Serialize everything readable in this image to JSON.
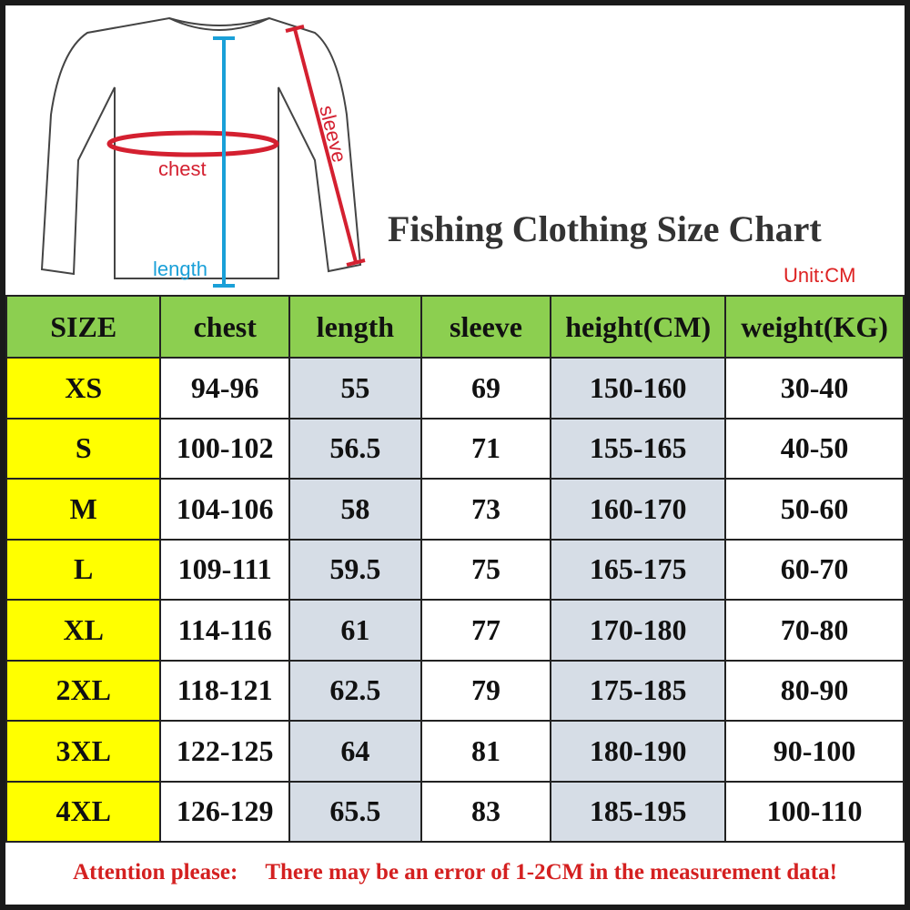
{
  "diagram": {
    "chest_label": "chest",
    "length_label": "length",
    "sleeve_label": "sleeve",
    "chest_color": "#d42030",
    "length_color": "#1aa0d8"
  },
  "title": "Fishing Clothing Size Chart",
  "unit": "Unit:CM",
  "table": {
    "headers": [
      "SIZE",
      "chest",
      "length",
      "sleeve",
      "height(CM)",
      "weight(KG)"
    ],
    "rows": [
      [
        "XS",
        "94-96",
        "55",
        "69",
        "150-160",
        "30-40"
      ],
      [
        "S",
        "100-102",
        "56.5",
        "71",
        "155-165",
        "40-50"
      ],
      [
        "M",
        "104-106",
        "58",
        "73",
        "160-170",
        "50-60"
      ],
      [
        "L",
        "109-111",
        "59.5",
        "75",
        "165-175",
        "60-70"
      ],
      [
        "XL",
        "114-116",
        "61",
        "77",
        "170-180",
        "70-80"
      ],
      [
        "2XL",
        "118-121",
        "62.5",
        "79",
        "175-185",
        "80-90"
      ],
      [
        "3XL",
        "122-125",
        "64",
        "81",
        "180-190",
        "90-100"
      ],
      [
        "4XL",
        "126-129",
        "65.5",
        "83",
        "185-195",
        "100-110"
      ]
    ]
  },
  "footer": {
    "attention": "Attention please:",
    "note": "There may be an error of 1-2CM in the measurement data!"
  },
  "colors": {
    "header_bg": "#8ccf50",
    "size_bg": "#ffff00",
    "shade_bg": "#d6dde6",
    "footer_text": "#d42020"
  }
}
